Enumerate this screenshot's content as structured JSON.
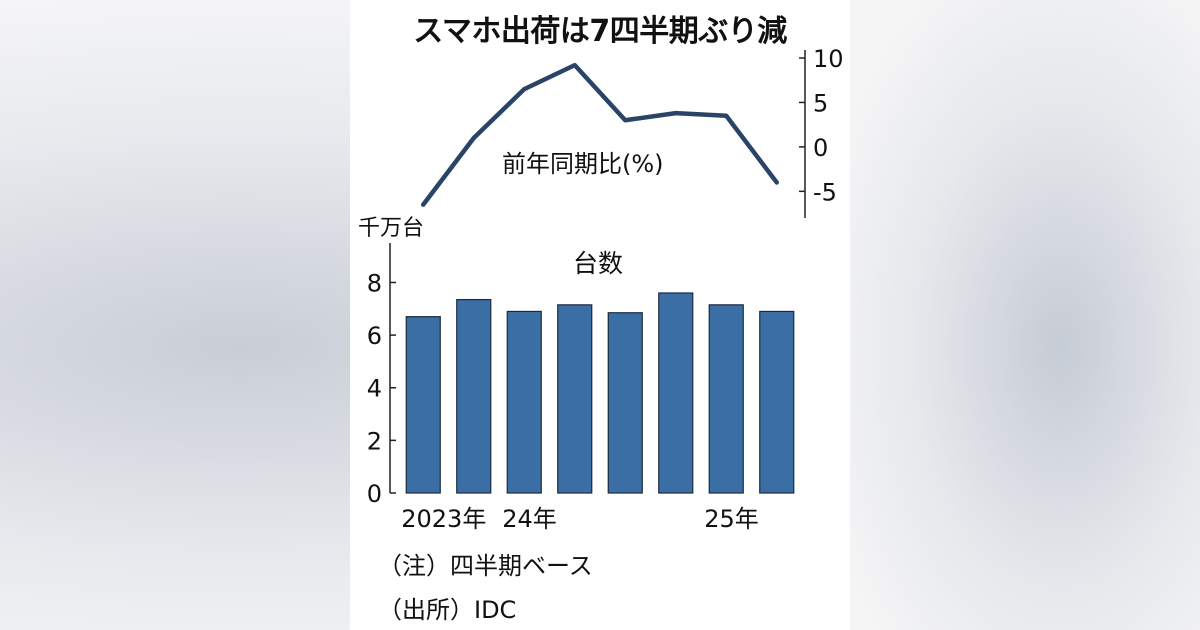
{
  "title": "スマホ出荷は7四半期ぶり減",
  "notes": {
    "note": "（注）四半期ベース",
    "source": "（出所）IDC"
  },
  "colors": {
    "line": "#2a4468",
    "bar_fill": "#3a6ea5",
    "bar_stroke": "#1a2a40",
    "text": "#111111"
  },
  "chart_data": [
    {
      "type": "line",
      "label": "前年同期比(%)",
      "ylim": [
        -8,
        10
      ],
      "yticks": [
        10,
        5,
        0,
        -5
      ],
      "ytick_labels": [
        "10",
        "5",
        "0",
        "-5"
      ],
      "axis_side": "right",
      "values": [
        -6.5,
        1.0,
        6.5,
        9.2,
        3.0,
        3.8,
        3.5,
        -4.0
      ]
    },
    {
      "type": "bar",
      "title": "台数",
      "unit": "千万台",
      "ylim": [
        0,
        9.5
      ],
      "yticks": [
        0,
        2,
        4,
        6,
        8
      ],
      "ytick_labels": [
        "0",
        "2",
        "4",
        "6",
        "8"
      ],
      "categories": [
        "2023年",
        "",
        "24年",
        "",
        "",
        "",
        "25年",
        ""
      ],
      "values": [
        6.7,
        7.35,
        6.9,
        7.15,
        6.85,
        7.6,
        7.15,
        6.9
      ]
    }
  ]
}
